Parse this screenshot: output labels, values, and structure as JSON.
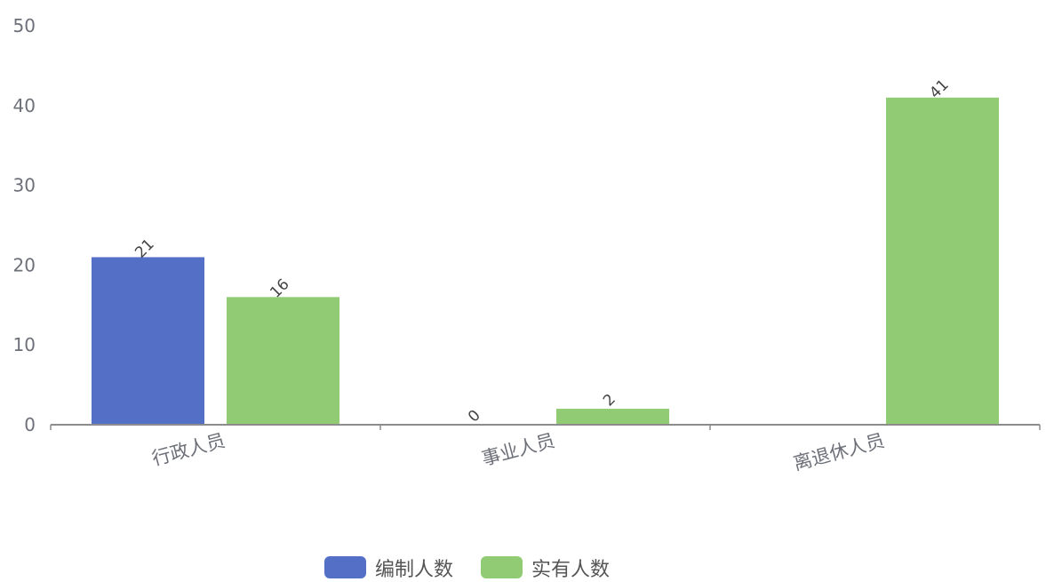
{
  "chart_data": {
    "type": "bar",
    "categories": [
      "行政人员",
      "事业人员",
      "离退休人员"
    ],
    "series": [
      {
        "name": "编制人数",
        "values": [
          21,
          0,
          null
        ],
        "color": "#5470c6"
      },
      {
        "name": "实有人数",
        "values": [
          16,
          2,
          41
        ],
        "color": "#91cc75"
      }
    ],
    "yticks": [
      0,
      10,
      20,
      30,
      40,
      50
    ],
    "ylim": [
      0,
      50
    ],
    "grid": false,
    "legend_position": "bottom-center",
    "title": "",
    "xlabel": "",
    "ylabel": ""
  }
}
